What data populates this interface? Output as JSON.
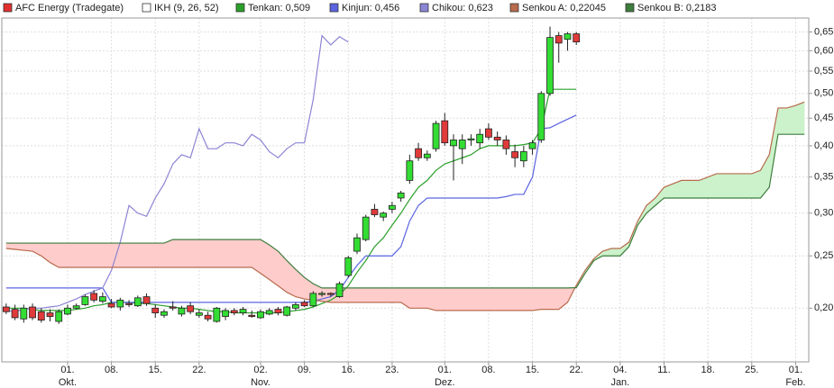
{
  "chart_data": {
    "type": "candlestick",
    "indicator": "IKH (9, 26, 52)",
    "log_scale": true,
    "grid": true,
    "cloud_colors": {
      "up": "#ccf2cc",
      "down": "#ffcccc"
    },
    "ylim": [
      0.159,
      0.69
    ],
    "yticks": [
      {
        "value": 0.2,
        "label": "0,20"
      },
      {
        "value": 0.25,
        "label": "0,25"
      },
      {
        "value": 0.3,
        "label": "0,30"
      },
      {
        "value": 0.35,
        "label": "0,35"
      },
      {
        "value": 0.4,
        "label": "0,40"
      },
      {
        "value": 0.45,
        "label": "0,45"
      },
      {
        "value": 0.5,
        "label": "0,50"
      },
      {
        "value": 0.55,
        "label": "0,55"
      },
      {
        "value": 0.6,
        "label": "0,60"
      },
      {
        "value": 0.65,
        "label": "0,65"
      }
    ],
    "categories": [
      null,
      null,
      null,
      null,
      null,
      null,
      null,
      "01.",
      null,
      null,
      null,
      null,
      "08.",
      null,
      null,
      null,
      null,
      "15.",
      null,
      null,
      null,
      null,
      "22.",
      null,
      null,
      null,
      null,
      null,
      null,
      "02.",
      null,
      null,
      null,
      null,
      "09.",
      null,
      null,
      null,
      null,
      "16.",
      null,
      null,
      null,
      null,
      "23.",
      null,
      null,
      null,
      null,
      null,
      "01.",
      null,
      null,
      null,
      null,
      "08.",
      null,
      null,
      null,
      null,
      "15.",
      null,
      null,
      null,
      null,
      "22.",
      null,
      null,
      null,
      null,
      "04.",
      null,
      null,
      null,
      null,
      "11.",
      null,
      null,
      null,
      null,
      "18.",
      null,
      null,
      null,
      null,
      "25.",
      null,
      null,
      null,
      null,
      "01.",
      null
    ],
    "month_labels": [
      null,
      null,
      null,
      null,
      null,
      null,
      null,
      "Okt.",
      null,
      null,
      null,
      null,
      null,
      null,
      null,
      null,
      null,
      null,
      null,
      null,
      null,
      null,
      null,
      null,
      null,
      null,
      null,
      null,
      null,
      "Nov.",
      null,
      null,
      null,
      null,
      null,
      null,
      null,
      null,
      null,
      null,
      null,
      null,
      null,
      null,
      null,
      null,
      null,
      null,
      null,
      null,
      "Dez.",
      null,
      null,
      null,
      null,
      null,
      null,
      null,
      null,
      null,
      null,
      null,
      null,
      null,
      null,
      null,
      null,
      null,
      null,
      null,
      "Jan.",
      null,
      null,
      null,
      null,
      null,
      null,
      null,
      null,
      null,
      null,
      null,
      null,
      null,
      null,
      null,
      null,
      null,
      null,
      null,
      "Feb.",
      null
    ],
    "series": [
      {
        "name": "AFC Energy (Tradegate)",
        "type": "candlestick",
        "color": "#e03030",
        "up_color": "#33dd33",
        "down_color": "#e03a3a",
        "open": [
          0.201,
          0.199,
          0.191,
          0.201,
          0.197,
          0.196,
          0.189,
          0.195,
          0.2,
          0.203,
          0.213,
          0.206,
          0.204,
          0.201,
          0.204,
          0.202,
          0.21,
          0.2,
          0.194,
          0.201,
          0.195,
          0.202,
          0.194,
          0.194,
          0.189,
          0.193,
          0.198,
          0.196,
          0.194,
          0.192,
          0.195,
          0.199,
          0.194,
          0.2,
          0.205,
          0.202,
          0.212,
          0.213,
          0.21,
          0.23,
          0.255,
          0.268,
          0.305,
          0.295,
          0.305,
          0.32,
          0.345,
          0.395,
          0.38,
          0.395,
          0.445,
          0.4,
          0.395,
          0.41,
          0.405,
          0.43,
          0.415,
          0.41,
          0.39,
          0.375,
          0.395,
          0.41,
          0.5,
          0.64,
          0.63,
          0.645,
          null,
          null,
          null,
          null,
          null,
          null,
          null,
          null,
          null,
          null,
          null,
          null,
          null,
          null,
          null,
          null,
          null,
          null,
          null,
          null,
          null,
          null,
          null,
          null,
          null,
          null
        ],
        "high": [
          0.204,
          0.203,
          0.203,
          0.204,
          0.2,
          0.199,
          0.199,
          0.203,
          0.204,
          0.212,
          0.216,
          0.214,
          0.208,
          0.209,
          0.207,
          0.211,
          0.213,
          0.203,
          0.199,
          0.206,
          0.202,
          0.205,
          0.199,
          0.197,
          0.201,
          0.2,
          0.2,
          0.201,
          0.198,
          0.199,
          0.2,
          0.201,
          0.202,
          0.205,
          0.207,
          0.215,
          0.215,
          0.214,
          0.224,
          0.25,
          0.275,
          0.298,
          0.312,
          0.302,
          0.315,
          0.33,
          0.385,
          0.405,
          0.392,
          0.445,
          0.46,
          0.42,
          0.42,
          0.42,
          0.43,
          0.44,
          0.425,
          0.418,
          0.402,
          0.4,
          0.41,
          0.505,
          0.665,
          0.65,
          0.65,
          0.65,
          null,
          null,
          null,
          null,
          null,
          null,
          null,
          null,
          null,
          null,
          null,
          null,
          null,
          null,
          null,
          null,
          null,
          null,
          null,
          null,
          null,
          null,
          null,
          null,
          null,
          null
        ],
        "low": [
          0.195,
          0.19,
          0.188,
          0.19,
          0.188,
          0.189,
          0.187,
          0.194,
          0.199,
          0.202,
          0.205,
          0.204,
          0.2,
          0.198,
          0.201,
          0.201,
          0.202,
          0.192,
          0.192,
          0.198,
          0.193,
          0.195,
          0.192,
          0.189,
          0.188,
          0.19,
          0.194,
          0.194,
          0.192,
          0.191,
          0.194,
          0.194,
          0.193,
          0.198,
          0.201,
          0.201,
          0.21,
          0.21,
          0.209,
          0.228,
          0.252,
          0.266,
          0.295,
          0.29,
          0.3,
          0.315,
          0.34,
          0.375,
          0.375,
          0.39,
          0.4,
          0.345,
          0.37,
          0.4,
          0.395,
          0.41,
          0.4,
          0.385,
          0.365,
          0.365,
          0.385,
          0.405,
          0.495,
          0.57,
          0.6,
          0.615,
          null,
          null,
          null,
          null,
          null,
          null,
          null,
          null,
          null,
          null,
          null,
          null,
          null,
          null,
          null,
          null,
          null,
          null,
          null,
          null,
          null,
          null,
          null,
          null,
          null,
          null
        ],
        "close": [
          0.197,
          0.192,
          0.2,
          0.192,
          0.19,
          0.193,
          0.197,
          0.2,
          0.202,
          0.21,
          0.207,
          0.21,
          0.201,
          0.207,
          0.203,
          0.209,
          0.204,
          0.196,
          0.197,
          0.2,
          0.2,
          0.197,
          0.196,
          0.191,
          0.2,
          0.198,
          0.196,
          0.199,
          0.193,
          0.197,
          0.198,
          0.196,
          0.201,
          0.203,
          0.202,
          0.213,
          0.213,
          0.212,
          0.222,
          0.248,
          0.27,
          0.295,
          0.298,
          0.3,
          0.31,
          0.327,
          0.375,
          0.38,
          0.386,
          0.44,
          0.405,
          0.41,
          0.41,
          0.412,
          0.42,
          0.415,
          0.41,
          0.395,
          0.38,
          0.39,
          0.405,
          0.5,
          0.635,
          0.62,
          0.645,
          0.623,
          null,
          null,
          null,
          null,
          null,
          null,
          null,
          null,
          null,
          null,
          null,
          null,
          null,
          null,
          null,
          null,
          null,
          null,
          null,
          null,
          null,
          null,
          null,
          null,
          null,
          null
        ]
      },
      {
        "name": "Tenkan: 0,509",
        "type": "line",
        "color": "#2aa02a",
        "values": [
          0.2,
          0.2,
          0.2,
          0.199,
          0.198,
          0.198,
          0.198,
          0.198,
          0.199,
          0.2,
          0.202,
          0.203,
          0.205,
          0.205,
          0.205,
          0.204,
          0.204,
          0.203,
          0.202,
          0.201,
          0.2,
          0.2,
          0.199,
          0.198,
          0.197,
          0.197,
          0.196,
          0.196,
          0.196,
          0.196,
          0.196,
          0.196,
          0.197,
          0.198,
          0.199,
          0.201,
          0.204,
          0.207,
          0.212,
          0.22,
          0.233,
          0.245,
          0.26,
          0.27,
          0.285,
          0.3,
          0.318,
          0.335,
          0.345,
          0.36,
          0.37,
          0.375,
          0.38,
          0.385,
          0.395,
          0.4,
          0.4,
          0.4,
          0.4,
          0.402,
          0.405,
          0.43,
          0.509,
          0.509,
          0.509,
          0.509,
          null,
          null,
          null,
          null,
          null,
          null,
          null,
          null,
          null,
          null,
          null,
          null,
          null,
          null,
          null,
          null,
          null,
          null,
          null,
          null,
          null,
          null,
          null,
          null,
          null,
          null
        ]
      },
      {
        "name": "Kinjun: 0,456",
        "type": "line",
        "color": "#5a64e0",
        "values": [
          0.218,
          0.218,
          0.218,
          0.218,
          0.218,
          0.218,
          0.218,
          0.218,
          0.218,
          0.218,
          0.218,
          0.218,
          0.205,
          0.205,
          0.205,
          0.205,
          0.205,
          0.205,
          0.205,
          0.205,
          0.205,
          0.205,
          0.205,
          0.205,
          0.205,
          0.205,
          0.205,
          0.205,
          0.205,
          0.205,
          0.205,
          0.205,
          0.205,
          0.205,
          0.205,
          0.206,
          0.208,
          0.21,
          0.216,
          0.228,
          0.24,
          0.25,
          0.25,
          0.25,
          0.25,
          0.26,
          0.29,
          0.31,
          0.32,
          0.32,
          0.32,
          0.32,
          0.32,
          0.32,
          0.32,
          0.32,
          0.32,
          0.322,
          0.325,
          0.325,
          0.35,
          0.43,
          0.432,
          0.44,
          0.448,
          0.456,
          null,
          null,
          null,
          null,
          null,
          null,
          null,
          null,
          null,
          null,
          null,
          null,
          null,
          null,
          null,
          null,
          null,
          null,
          null,
          null,
          null,
          null,
          null,
          null,
          null,
          null
        ]
      },
      {
        "name": "Chikou: 0,623",
        "type": "line",
        "color": "#8c84d4",
        "values": [
          0.198,
          0.197,
          0.199,
          0.2,
          0.2,
          0.201,
          0.202,
          0.205,
          0.208,
          0.212,
          0.215,
          0.218,
          0.235,
          0.265,
          0.31,
          0.3,
          0.296,
          0.32,
          0.34,
          0.37,
          0.385,
          0.38,
          0.43,
          0.395,
          0.395,
          0.405,
          0.405,
          0.4,
          0.42,
          0.41,
          0.39,
          0.38,
          0.395,
          0.405,
          0.405,
          0.487,
          0.64,
          0.615,
          0.637,
          0.623,
          null,
          null,
          null,
          null,
          null,
          null,
          null,
          null,
          null,
          null,
          null,
          null,
          null,
          null,
          null,
          null,
          null,
          null,
          null,
          null,
          null,
          null,
          null,
          null,
          null,
          null,
          null,
          null,
          null,
          null,
          null,
          null,
          null,
          null,
          null,
          null,
          null,
          null,
          null,
          null,
          null,
          null,
          null,
          null,
          null,
          null,
          null,
          null,
          null,
          null,
          null,
          null
        ]
      },
      {
        "name": "Senkou A: 0,22045",
        "type": "line",
        "color": "#b86a4c",
        "values": [
          0.258,
          0.257,
          0.256,
          0.255,
          0.25,
          0.243,
          0.238,
          0.238,
          0.238,
          0.238,
          0.238,
          0.238,
          0.238,
          0.238,
          0.238,
          0.238,
          0.238,
          0.238,
          0.238,
          0.238,
          0.238,
          0.238,
          0.238,
          0.238,
          0.238,
          0.238,
          0.238,
          0.238,
          0.238,
          0.232,
          0.226,
          0.22,
          0.214,
          0.21,
          0.208,
          0.207,
          0.206,
          0.205,
          0.205,
          0.205,
          0.205,
          0.205,
          0.205,
          0.205,
          0.205,
          0.205,
          0.2,
          0.2,
          0.2,
          0.198,
          0.198,
          0.198,
          0.198,
          0.198,
          0.198,
          0.198,
          0.198,
          0.198,
          0.198,
          0.198,
          0.198,
          0.199,
          0.199,
          0.199,
          0.205,
          0.2205,
          0.235,
          0.247,
          0.255,
          0.258,
          0.258,
          0.265,
          0.29,
          0.31,
          0.32,
          0.335,
          0.34,
          0.345,
          0.345,
          0.345,
          0.35,
          0.355,
          0.355,
          0.355,
          0.355,
          0.355,
          0.36,
          0.385,
          0.47,
          0.47,
          0.475,
          0.482
        ]
      },
      {
        "name": "Senkou B: 0,2183",
        "type": "line",
        "color": "#3d7d3d",
        "values": [
          0.264,
          0.264,
          0.264,
          0.264,
          0.264,
          0.264,
          0.264,
          0.264,
          0.264,
          0.264,
          0.264,
          0.264,
          0.264,
          0.264,
          0.264,
          0.264,
          0.264,
          0.264,
          0.264,
          0.268,
          0.268,
          0.268,
          0.268,
          0.268,
          0.268,
          0.268,
          0.268,
          0.268,
          0.268,
          0.268,
          0.262,
          0.255,
          0.245,
          0.236,
          0.228,
          0.222,
          0.218,
          0.218,
          0.218,
          0.218,
          0.218,
          0.218,
          0.218,
          0.218,
          0.218,
          0.218,
          0.218,
          0.218,
          0.218,
          0.218,
          0.218,
          0.218,
          0.218,
          0.218,
          0.218,
          0.218,
          0.218,
          0.218,
          0.218,
          0.218,
          0.218,
          0.218,
          0.218,
          0.218,
          0.218,
          0.2183,
          0.232,
          0.245,
          0.25,
          0.25,
          0.25,
          0.26,
          0.285,
          0.3,
          0.31,
          0.32,
          0.32,
          0.32,
          0.32,
          0.32,
          0.32,
          0.32,
          0.32,
          0.32,
          0.32,
          0.32,
          0.32,
          0.335,
          0.42,
          0.42,
          0.42,
          0.42
        ]
      }
    ]
  }
}
